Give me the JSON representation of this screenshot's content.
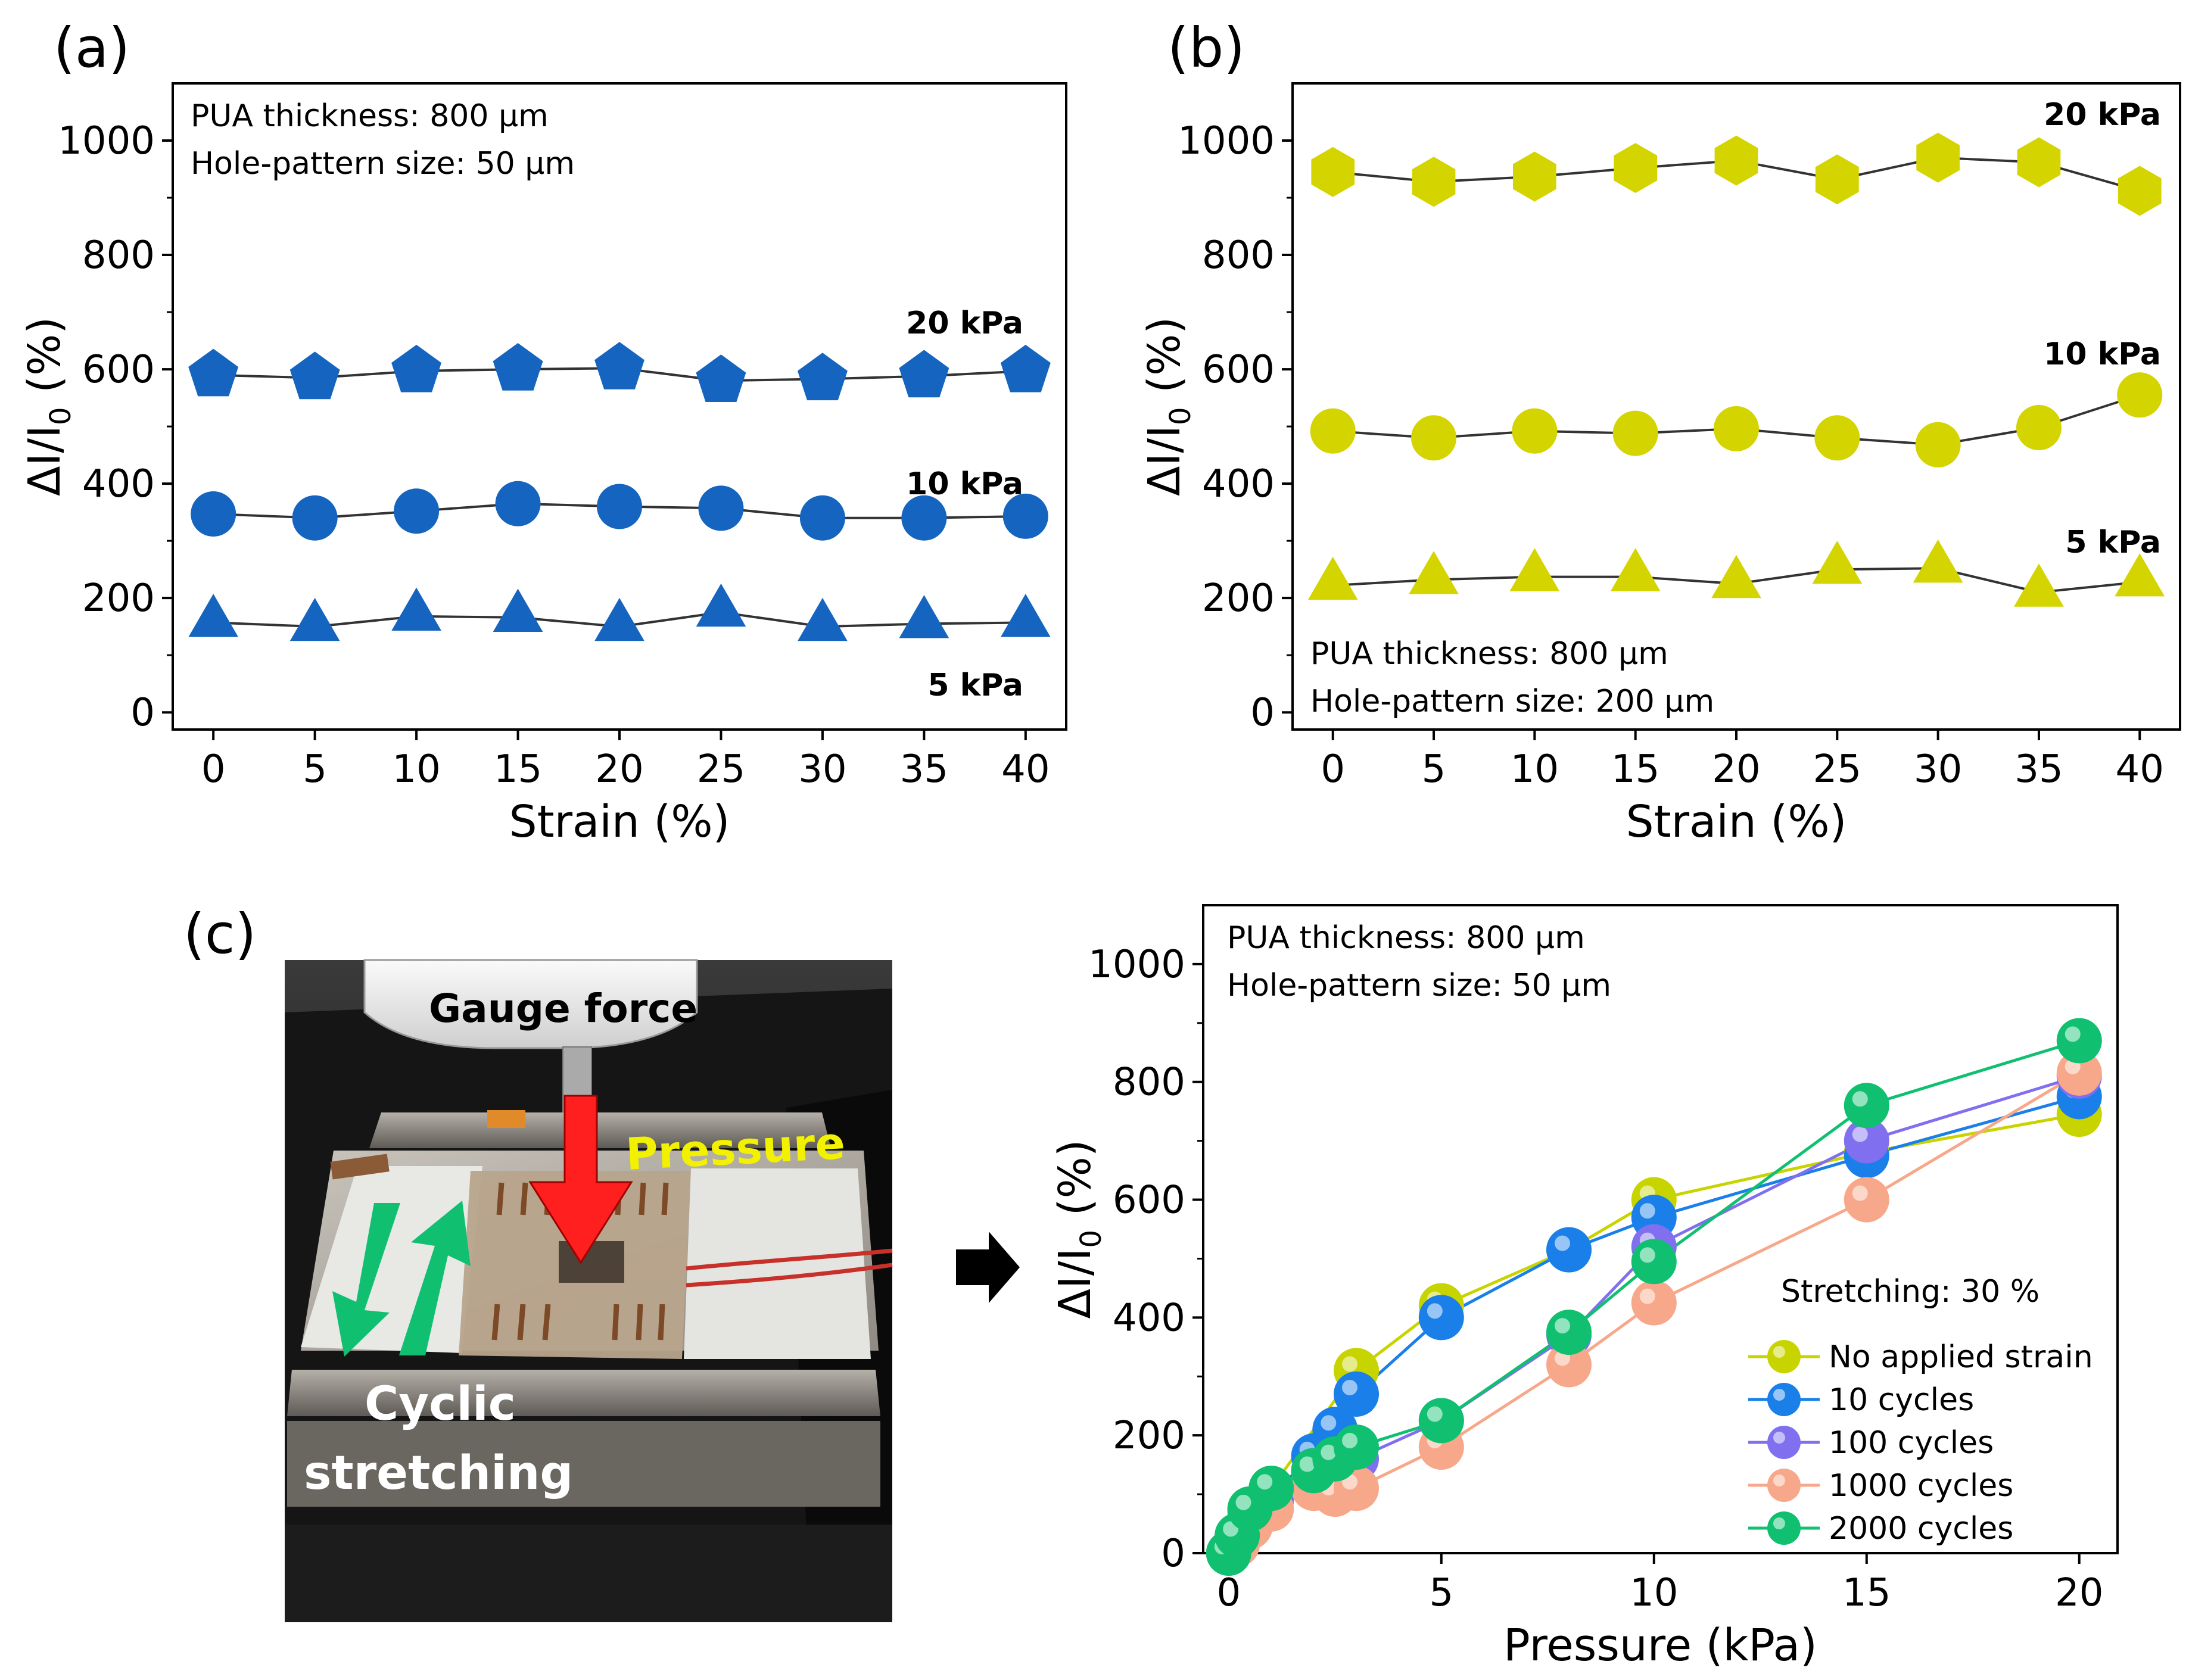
{
  "figure": {
    "panel_labels": [
      "(a)",
      "(b)",
      "(c)"
    ]
  },
  "colors": {
    "panel_a": "#1565c0",
    "panel_b": "#d4d400",
    "line": "#333333",
    "photo_arrow_red": "#ff1f1f",
    "photo_arrow_green": "#10c070",
    "photo_text_yellow": "#f2f200",
    "big_arrow": "#000000"
  },
  "photo": {
    "labels": {
      "gauge": "Gauge force",
      "pressure": "Pressure",
      "cyclic_line1": "Cyclic",
      "cyclic_line2": "stretching"
    }
  },
  "chart_data": [
    {
      "id": "a",
      "type": "scatter",
      "title": "",
      "xlabel": "Strain (%)",
      "ylabel_main": "ΔI/I",
      "ylabel_sub": "0",
      "ylabel_tail": " (%)",
      "xlim": [
        -2,
        42
      ],
      "ylim": [
        -30,
        1100
      ],
      "xticks": [
        0,
        5,
        10,
        15,
        20,
        25,
        30,
        35,
        40
      ],
      "yticks": [
        0,
        200,
        400,
        600,
        800,
        1000
      ],
      "annotation_lines": [
        "PUA thickness: 800 μm",
        "Hole-pattern size: 50 μm"
      ],
      "annotation_position": "top-left",
      "x": [
        0,
        5,
        10,
        15,
        20,
        25,
        30,
        35,
        40
      ],
      "series": [
        {
          "name": "20 kPa",
          "marker": "pentagon",
          "values": [
            590,
            585,
            597,
            600,
            602,
            580,
            583,
            588,
            597
          ]
        },
        {
          "name": "10 kPa",
          "marker": "circle",
          "values": [
            347,
            340,
            352,
            365,
            360,
            357,
            340,
            340,
            343
          ]
        },
        {
          "name": "5 kPa",
          "marker": "triangle",
          "values": [
            157,
            150,
            168,
            166,
            150,
            175,
            150,
            155,
            157
          ]
        }
      ]
    },
    {
      "id": "b",
      "type": "scatter",
      "title": "",
      "xlabel": "Strain (%)",
      "ylabel_main": "ΔI/I",
      "ylabel_sub": "0",
      "ylabel_tail": " (%)",
      "xlim": [
        -2,
        42
      ],
      "ylim": [
        -30,
        1100
      ],
      "xticks": [
        0,
        5,
        10,
        15,
        20,
        25,
        30,
        35,
        40
      ],
      "yticks": [
        0,
        200,
        400,
        600,
        800,
        1000
      ],
      "annotation_lines": [
        "PUA thickness: 800 μm",
        "Hole-pattern size: 200 μm"
      ],
      "annotation_position": "bottom-left",
      "x": [
        0,
        5,
        10,
        15,
        20,
        25,
        30,
        35,
        40
      ],
      "series": [
        {
          "name": "20 kPa",
          "marker": "hexagon",
          "values": [
            945,
            928,
            937,
            952,
            965,
            932,
            970,
            962,
            912
          ]
        },
        {
          "name": "10 kPa",
          "marker": "circle",
          "values": [
            492,
            480,
            492,
            488,
            496,
            480,
            468,
            498,
            555
          ]
        },
        {
          "name": "5 kPa",
          "marker": "triangle",
          "values": [
            222,
            232,
            237,
            237,
            225,
            250,
            252,
            210,
            228
          ]
        }
      ]
    },
    {
      "id": "c",
      "type": "line",
      "title": "",
      "xlabel": "Pressure (kPa)",
      "ylabel_main": "ΔI/I",
      "ylabel_sub": "0",
      "ylabel_tail": " (%)",
      "xlim": [
        -0.6,
        20.9
      ],
      "ylim": [
        0,
        1100
      ],
      "xticks": [
        0,
        5,
        10,
        15,
        20
      ],
      "yticks": [
        0,
        200,
        400,
        600,
        800,
        1000
      ],
      "annotation_lines": [
        "PUA thickness: 800 μm",
        "Hole-pattern size: 50 μm"
      ],
      "annotation_position": "top-left",
      "legend_title": "Stretching: 30 %",
      "legend_position": "bottom-right",
      "series": [
        {
          "name": "No applied strain",
          "color": "#c8d400",
          "x": [
            0,
            0.2,
            0.5,
            1,
            3,
            5,
            8,
            10,
            15,
            20
          ],
          "values": [
            0,
            20,
            70,
            110,
            310,
            420,
            515,
            600,
            680,
            745
          ]
        },
        {
          "name": "10 cycles",
          "color": "#1a7fe8",
          "x": [
            0,
            0.2,
            0.5,
            1,
            2,
            2.5,
            3,
            5,
            8,
            10,
            15,
            20
          ],
          "values": [
            0,
            20,
            60,
            100,
            165,
            210,
            270,
            400,
            515,
            570,
            675,
            775
          ]
        },
        {
          "name": "100 cycles",
          "color": "#8070f0",
          "x": [
            0,
            0.2,
            0.5,
            1,
            2,
            2.5,
            3,
            5,
            8,
            10,
            15,
            20
          ],
          "values": [
            0,
            20,
            55,
            90,
            140,
            150,
            160,
            225,
            370,
            520,
            700,
            810
          ]
        },
        {
          "name": "1000 cycles",
          "color": "#f8a88a",
          "x": [
            0,
            0.2,
            0.5,
            1,
            2,
            2.5,
            3,
            5,
            8,
            10,
            15,
            20
          ],
          "values": [
            0,
            15,
            45,
            75,
            110,
            100,
            110,
            180,
            320,
            425,
            600,
            815
          ]
        },
        {
          "name": "2000 cycles",
          "color": "#10c070",
          "x": [
            0,
            0.2,
            0.5,
            1,
            2,
            2.5,
            3,
            5,
            8,
            10,
            15,
            20
          ],
          "values": [
            0,
            30,
            75,
            110,
            140,
            160,
            180,
            225,
            375,
            495,
            760,
            870
          ]
        }
      ]
    }
  ]
}
